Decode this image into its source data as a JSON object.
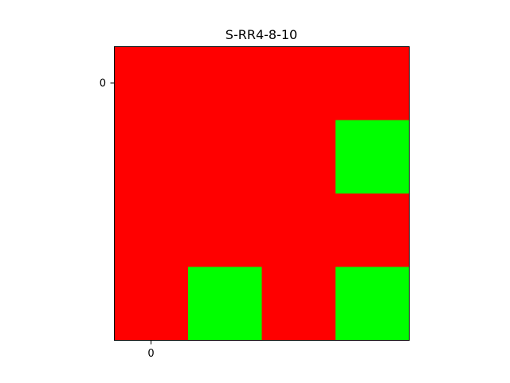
{
  "chart_data": {
    "type": "heatmap",
    "title": "S-RR4-8-10",
    "xlabel": "",
    "ylabel": "",
    "x_tick_labels": [
      "0"
    ],
    "y_tick_labels": [
      "0"
    ],
    "grid": false,
    "n_rows": 4,
    "n_cols": 4,
    "cells": [
      [
        0,
        0,
        0,
        0
      ],
      [
        0,
        0,
        0,
        1
      ],
      [
        0,
        0,
        0,
        0
      ],
      [
        0,
        1,
        0,
        1
      ]
    ],
    "colors": {
      "0": "#ff0000",
      "1": "#00ff00"
    },
    "frame_color": "#000000"
  }
}
